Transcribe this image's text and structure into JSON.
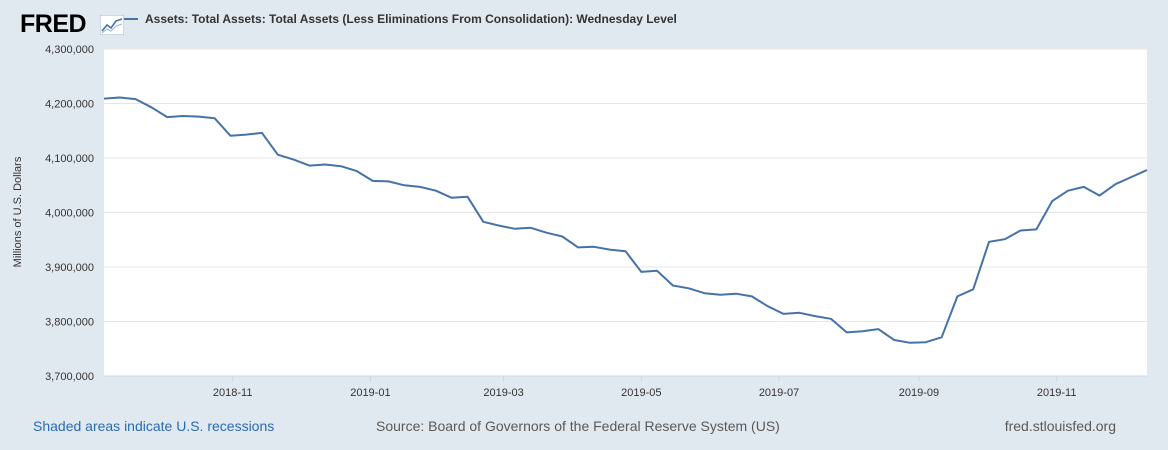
{
  "header": {
    "logo_text": "FRED",
    "logo_icon": "line-chart-icon"
  },
  "colors": {
    "background": "#e1e9f0",
    "plot_background": "#ffffff",
    "series": "#4572a7",
    "recession_link": "#2a6ab5"
  },
  "chart_data": {
    "type": "line",
    "title": "",
    "xlabel": "",
    "ylabel": "Millions of U.S. Dollars",
    "ylim": [
      3700000,
      4300000
    ],
    "xlim": [
      "2018-09-05",
      "2019-12-11"
    ],
    "grid": true,
    "legend_position": "top-left",
    "y_ticks": [
      3700000,
      3800000,
      3900000,
      4000000,
      4100000,
      4200000,
      4300000
    ],
    "y_tick_labels": [
      "3,700,000",
      "3,800,000",
      "3,900,000",
      "4,000,000",
      "4,100,000",
      "4,200,000",
      "4,300,000"
    ],
    "x_ticks": [
      "2018-11-01",
      "2019-01-01",
      "2019-03-01",
      "2019-05-01",
      "2019-07-01",
      "2019-09-01",
      "2019-11-01"
    ],
    "x_tick_labels": [
      "2018-11",
      "2019-01",
      "2019-03",
      "2019-05",
      "2019-07",
      "2019-09",
      "2019-11"
    ],
    "series": [
      {
        "name": "Assets: Total Assets: Total Assets (Less Eliminations From Consolidation): Wednesday Level",
        "x": [
          "2018-09-05",
          "2018-09-12",
          "2018-09-19",
          "2018-09-26",
          "2018-10-03",
          "2018-10-10",
          "2018-10-17",
          "2018-10-24",
          "2018-10-31",
          "2018-11-07",
          "2018-11-14",
          "2018-11-21",
          "2018-11-28",
          "2018-12-05",
          "2018-12-12",
          "2018-12-19",
          "2018-12-26",
          "2019-01-02",
          "2019-01-09",
          "2019-01-16",
          "2019-01-23",
          "2019-01-30",
          "2019-02-06",
          "2019-02-13",
          "2019-02-20",
          "2019-02-27",
          "2019-03-06",
          "2019-03-13",
          "2019-03-20",
          "2019-03-27",
          "2019-04-03",
          "2019-04-10",
          "2019-04-17",
          "2019-04-24",
          "2019-05-01",
          "2019-05-08",
          "2019-05-15",
          "2019-05-22",
          "2019-05-29",
          "2019-06-05",
          "2019-06-12",
          "2019-06-19",
          "2019-06-26",
          "2019-07-03",
          "2019-07-10",
          "2019-07-17",
          "2019-07-24",
          "2019-07-31",
          "2019-08-07",
          "2019-08-14",
          "2019-08-21",
          "2019-08-28",
          "2019-09-04",
          "2019-09-11",
          "2019-09-18",
          "2019-09-25",
          "2019-10-02",
          "2019-10-09",
          "2019-10-16",
          "2019-10-23",
          "2019-10-30",
          "2019-11-06",
          "2019-11-13",
          "2019-11-20",
          "2019-11-27",
          "2019-12-04",
          "2019-12-11"
        ],
        "values": [
          4209000,
          4211000,
          4208000,
          4193000,
          4175000,
          4177000,
          4176000,
          4173000,
          4141000,
          4143000,
          4146000,
          4106000,
          4097000,
          4086000,
          4088000,
          4085000,
          4076000,
          4058000,
          4057000,
          4050000,
          4047000,
          4040000,
          4027000,
          4029000,
          3983000,
          3976000,
          3970000,
          3972000,
          3963000,
          3956000,
          3936000,
          3937000,
          3932000,
          3929000,
          3891000,
          3893000,
          3866000,
          3861000,
          3852000,
          3849000,
          3851000,
          3846000,
          3828000,
          3814000,
          3816000,
          3810000,
          3805000,
          3780000,
          3782000,
          3786000,
          3766000,
          3761000,
          3762000,
          3771000,
          3846000,
          3859000,
          3946000,
          3951000,
          3967000,
          3969000,
          4021000,
          4040000,
          4047000,
          4031000,
          4052000,
          4065000,
          4078000
        ]
      }
    ]
  },
  "legend": {
    "label": "Assets: Total Assets: Total Assets (Less Eliminations From Consolidation): Wednesday Level"
  },
  "footer": {
    "recession_note": "Shaded areas indicate U.S. recessions",
    "source": "Source: Board of Governors of the Federal Reserve System (US)",
    "site": "fred.stlouisfed.org"
  }
}
